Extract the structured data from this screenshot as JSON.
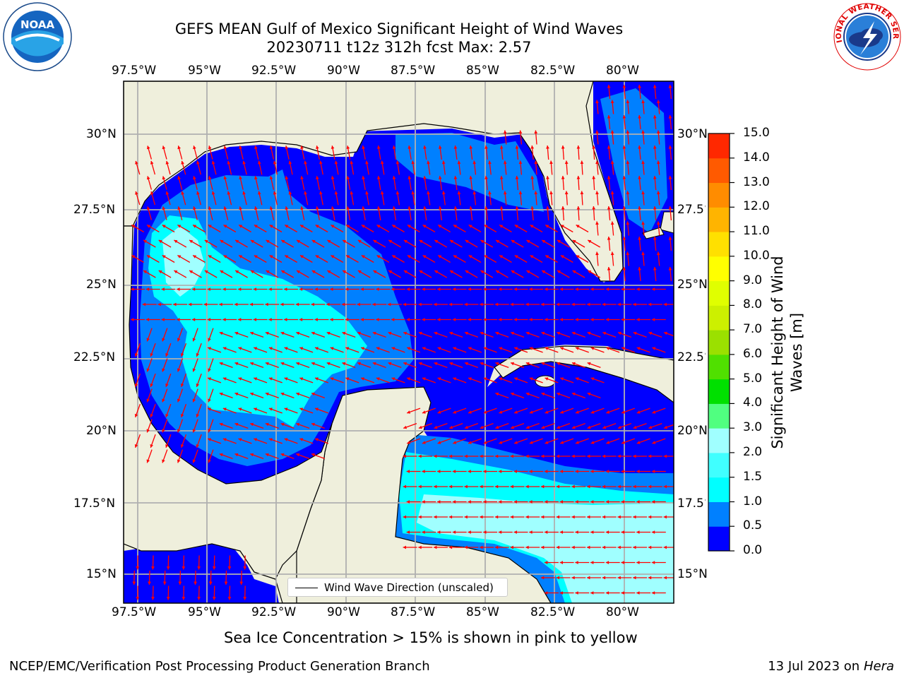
{
  "title": {
    "line1": "GEFS MEAN Gulf of Mexico Significant Height of Wind Waves",
    "line2": "20230711 t12z 312h fcst   Max: 2.57"
  },
  "logos": {
    "left": {
      "icon": "noaa-logo",
      "text": "NOAA"
    },
    "right": {
      "icon": "national-weather-service-logo",
      "text": "NATIONAL WEATHER SERVICE"
    }
  },
  "map": {
    "lon_labels": [
      "97.5°W",
      "95°W",
      "92.5°W",
      "90°W",
      "87.5°W",
      "85°W",
      "82.5°W",
      "80°W"
    ],
    "lat_labels": [
      "30°N",
      "27.5°N",
      "25°N",
      "22.5°N",
      "20°N",
      "17.5°N",
      "15°N"
    ],
    "land_color": "#efefdc",
    "grid_color": "#b0b0b0",
    "arrow_color": "#ff0000",
    "coast_color": "#000000"
  },
  "legend": {
    "label": "Wind Wave Direction (unscaled)"
  },
  "colorbar": {
    "label_line1": "Significant Height of Wind",
    "label_line2": "Waves [m]",
    "ticks": [
      "15.0",
      "14.0",
      "13.0",
      "12.0",
      "11.0",
      "10.0",
      "9.0",
      "8.0",
      "7.0",
      "6.0",
      "5.0",
      "4.0",
      "3.0",
      "2.0",
      "1.5",
      "1.0",
      "0.5",
      "0.0"
    ],
    "colors": [
      "#0000ff",
      "#0080ff",
      "#00ffff",
      "#40ffff",
      "#a0ffff",
      "#50ff80",
      "#00e000",
      "#50e000",
      "#9be000",
      "#ccf000",
      "#e0ff00",
      "#ffff00",
      "#ffe000",
      "#ffb400",
      "#ff8c00",
      "#ff5a00",
      "#ff2800"
    ]
  },
  "subtitle": "Sea Ice Concentration > 15% is shown in pink to yellow",
  "footer": {
    "left": "NCEP/EMC/Verification Post Processing Product Generation Branch",
    "right_date": "13 Jul 2023 on ",
    "right_host": "Hera"
  }
}
